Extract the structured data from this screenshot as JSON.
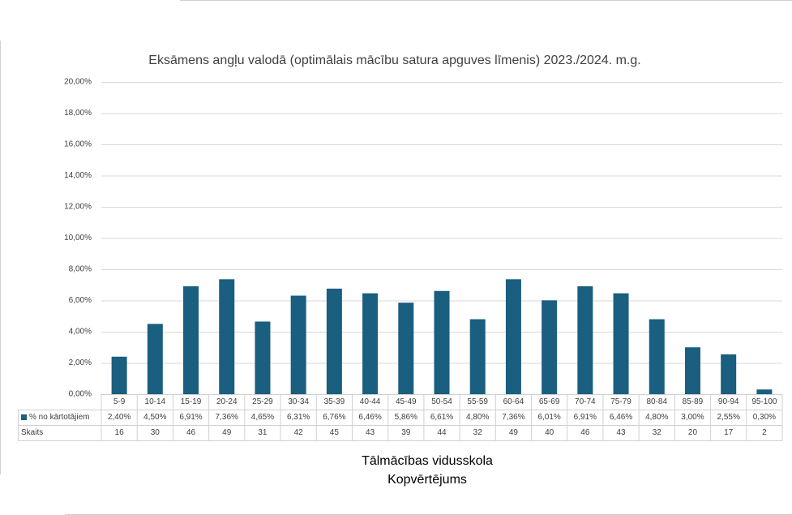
{
  "chart_data": {
    "type": "bar",
    "title": "Eksāmens angļu valodā (optimālais mācību satura apguves līmenis) 2023./2024. m.g.",
    "x_label": [
      "Tālmācības vidusskola",
      "Kopvērtējums"
    ],
    "categories": [
      "5-9",
      "10-14",
      "15-19",
      "20-24",
      "25-29",
      "30-34",
      "35-39",
      "40-44",
      "45-49",
      "50-54",
      "55-59",
      "60-64",
      "65-69",
      "70-74",
      "75-79",
      "80-84",
      "85-89",
      "90-94",
      "95-100"
    ],
    "series": [
      {
        "name": "% no kārtotājiem",
        "color": "#1a5e80",
        "values": [
          2.4,
          4.5,
          6.91,
          7.36,
          4.65,
          6.31,
          6.76,
          6.46,
          5.86,
          6.61,
          4.8,
          7.36,
          6.01,
          6.91,
          6.46,
          4.8,
          3.0,
          2.55,
          0.3
        ],
        "value_labels": [
          "2,40%",
          "4,50%",
          "6,91%",
          "7,36%",
          "4,65%",
          "6,31%",
          "6,76%",
          "6,46%",
          "5,86%",
          "6,61%",
          "4,80%",
          "7,36%",
          "6,01%",
          "6,91%",
          "6,46%",
          "4,80%",
          "3,00%",
          "2,55%",
          "0,30%"
        ]
      }
    ],
    "table_rows": [
      {
        "name": "Skaits",
        "values": [
          16,
          30,
          46,
          49,
          31,
          42,
          45,
          43,
          39,
          44,
          32,
          49,
          40,
          46,
          43,
          32,
          20,
          17,
          2
        ]
      }
    ],
    "ylim": [
      0,
      20
    ],
    "yticks": [
      {
        "value": 0,
        "label": "0,00%"
      },
      {
        "value": 2,
        "label": "2,00%"
      },
      {
        "value": 4,
        "label": "4,00%"
      },
      {
        "value": 6,
        "label": "6,00%"
      },
      {
        "value": 8,
        "label": "8,00%"
      },
      {
        "value": 10,
        "label": "10,00%"
      },
      {
        "value": 12,
        "label": "12,00%"
      },
      {
        "value": 14,
        "label": "14,00%"
      },
      {
        "value": 16,
        "label": "16,00%"
      },
      {
        "value": 18,
        "label": "18,00%"
      },
      {
        "value": 20,
        "label": "20,00%"
      }
    ],
    "grid": true
  }
}
